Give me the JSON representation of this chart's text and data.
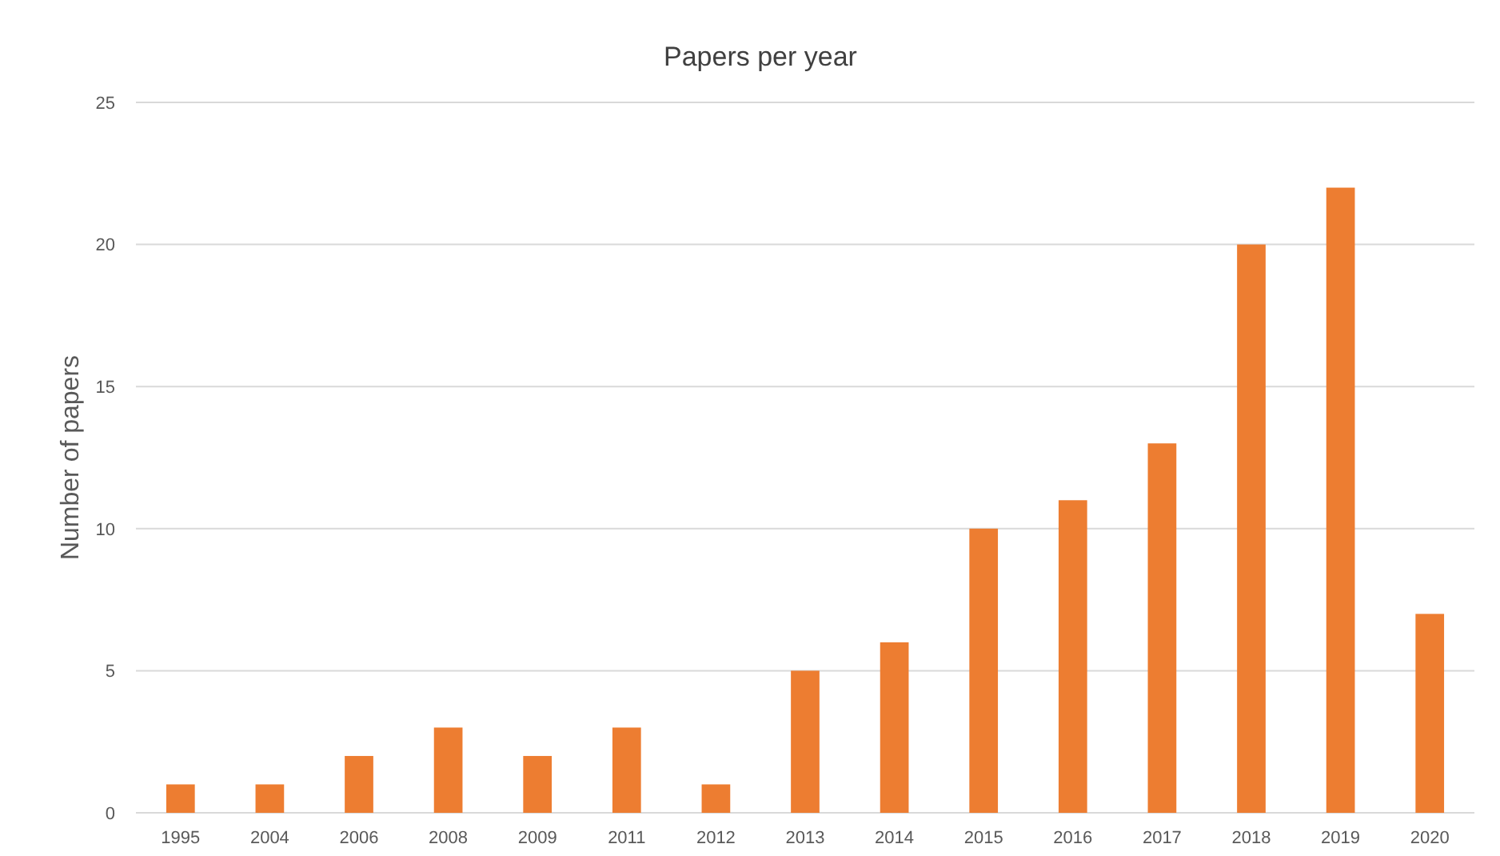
{
  "chart_data": {
    "type": "bar",
    "title": "Papers per year",
    "ylabel": "Number of papers",
    "categories": [
      "1995",
      "2004",
      "2006",
      "2008",
      "2009",
      "2011",
      "2012",
      "2013",
      "2014",
      "2015",
      "2016",
      "2017",
      "2018",
      "2019",
      "2020"
    ],
    "values": [
      1,
      1,
      2,
      3,
      2,
      3,
      1,
      5,
      6,
      10,
      11,
      13,
      20,
      22,
      7
    ],
    "color": "#ed7d31",
    "ylim": [
      0,
      25
    ],
    "yticks": [
      0,
      5,
      10,
      15,
      20,
      25
    ],
    "grid": "y"
  }
}
